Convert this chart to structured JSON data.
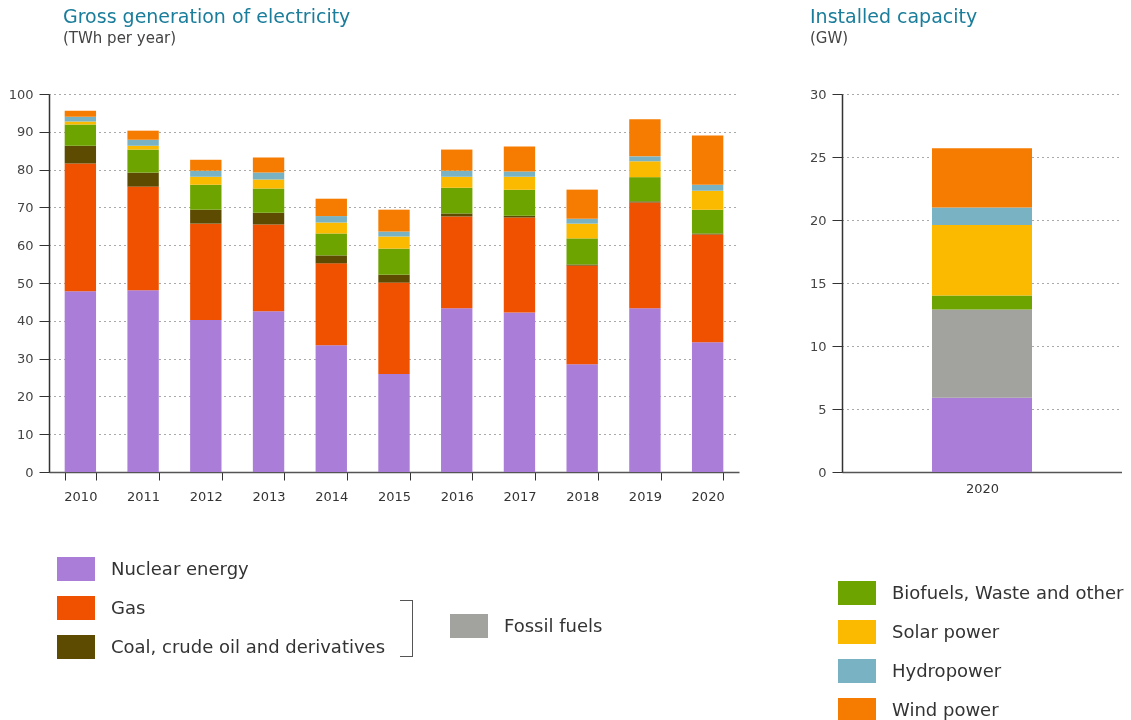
{
  "chart_data": [
    {
      "type": "bar",
      "title": "Gross generation of electricity",
      "subtitle": "(TWh per year)",
      "stacked": true,
      "grid": "y",
      "legend": "bottom",
      "categories": [
        "2010",
        "2011",
        "2012",
        "2013",
        "2014",
        "2015",
        "2016",
        "2017",
        "2018",
        "2019",
        "2020"
      ],
      "ylim": [
        0,
        100
      ],
      "yticks": [
        0,
        10,
        20,
        30,
        40,
        50,
        60,
        70,
        80,
        90,
        100
      ],
      "series": [
        {
          "name": "Nuclear energy",
          "color": "#a97dd8",
          "values": [
            47.8,
            48.1,
            40.2,
            42.5,
            33.5,
            25.9,
            43.3,
            42.2,
            28.5,
            43.3,
            34.3
          ]
        },
        {
          "name": "Gas",
          "color": "#f05100",
          "values": [
            33.8,
            27.4,
            25.5,
            23.0,
            21.7,
            24.2,
            24.3,
            25.1,
            26.1,
            28.0,
            28.5
          ]
        },
        {
          "name": "Coal, crude oil and derivatives",
          "color": "#5c4b00",
          "values": [
            4.7,
            3.7,
            3.7,
            3.1,
            2.1,
            2.1,
            0.8,
            0.5,
            0.3,
            0.3,
            0.3
          ]
        },
        {
          "name": "Biofuels, Waste and other",
          "color": "#6ea400",
          "values": [
            5.6,
            6.1,
            6.6,
            6.4,
            5.8,
            6.9,
            6.8,
            6.9,
            6.9,
            6.4,
            6.3
          ]
        },
        {
          "name": "Solar power",
          "color": "#fbb900",
          "values": [
            0.8,
            1.0,
            2.1,
            2.4,
            2.9,
            3.2,
            2.9,
            3.4,
            3.9,
            4.2,
            5.0
          ]
        },
        {
          "name": "Hydropower",
          "color": "#79b3c3",
          "values": [
            1.3,
            1.6,
            1.6,
            1.8,
            1.7,
            1.3,
            1.6,
            1.4,
            1.3,
            1.3,
            1.6
          ]
        },
        {
          "name": "Wind power",
          "color": "#f57c00",
          "values": [
            1.6,
            2.4,
            2.9,
            4.0,
            4.6,
            5.8,
            5.6,
            6.6,
            7.7,
            9.8,
            13.0
          ]
        }
      ]
    },
    {
      "type": "bar",
      "title": "Installed capacity",
      "subtitle": "(GW)",
      "stacked": true,
      "grid": "y",
      "legend": "bottom",
      "categories": [
        "2020"
      ],
      "ylim": [
        0,
        30
      ],
      "yticks": [
        0,
        5,
        10,
        15,
        20,
        25,
        30
      ],
      "series": [
        {
          "name": "Nuclear energy",
          "color": "#a97dd8",
          "values": [
            5.9
          ]
        },
        {
          "name": "Fossil fuels",
          "color": "#a2a29e",
          "values": [
            7.0
          ]
        },
        {
          "name": "Biofuels, Waste and other",
          "color": "#6ea400",
          "values": [
            1.1
          ]
        },
        {
          "name": "Solar power",
          "color": "#fbb900",
          "values": [
            5.6
          ]
        },
        {
          "name": "Hydropower",
          "color": "#79b3c3",
          "values": [
            1.4
          ]
        },
        {
          "name": "Wind power",
          "color": "#f57c00",
          "values": [
            4.7
          ]
        }
      ]
    }
  ]
}
